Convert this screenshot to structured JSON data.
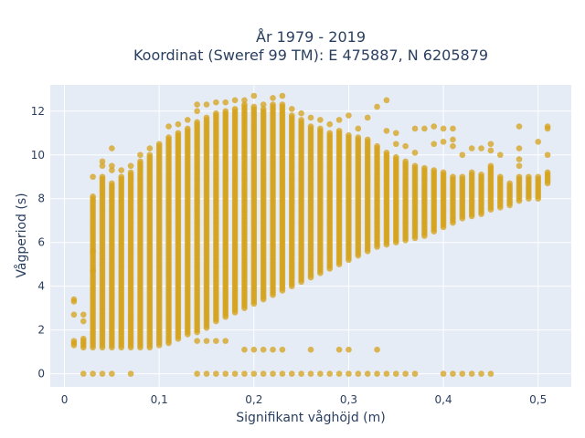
{
  "chart_data": {
    "type": "scatter",
    "title": [
      "År 1979 - 2019",
      "Koordinat (Sweref 99 TM): E 475887, N 6205879"
    ],
    "xlabel": "Signifikant våghöjd (m)",
    "ylabel": "Vågperiod (s)",
    "xlim": [
      -0.015,
      0.535
    ],
    "ylim": [
      -0.6,
      13.2
    ],
    "xticks": [
      0,
      0.1,
      0.2,
      0.3,
      0.4,
      0.5
    ],
    "xtick_labels": [
      "0",
      "0,1",
      "0,2",
      "0,3",
      "0,4",
      "0,5"
    ],
    "yticks": [
      0,
      2,
      4,
      6,
      8,
      10,
      12
    ],
    "ytick_labels": [
      "0",
      "2",
      "4",
      "6",
      "8",
      "10",
      "12"
    ],
    "grid": true,
    "colors": {
      "marker": "#d4a21a",
      "plot_bg": "#e5ecf6",
      "grid": "#ffffff",
      "text": "#2a3f5f"
    },
    "point_step_s": 0.1,
    "columns": [
      {
        "x": 0.01,
        "ymin": 1.3,
        "ymax": 1.5,
        "extra": [
          2.7,
          3.3,
          3.4
        ]
      },
      {
        "x": 0.02,
        "ymin": 1.2,
        "ymax": 1.6,
        "extra": [
          2.4,
          2.7,
          0
        ]
      },
      {
        "x": 0.03,
        "ymin": 1.2,
        "ymax": 8.1,
        "extra": [
          9.0,
          5.6,
          4.7,
          0
        ]
      },
      {
        "x": 0.04,
        "ymin": 1.2,
        "ymax": 9.0,
        "extra": [
          9.5,
          9.7,
          0
        ]
      },
      {
        "x": 0.05,
        "ymin": 1.2,
        "ymax": 8.7,
        "extra": [
          9.3,
          9.5,
          10.3,
          0
        ]
      },
      {
        "x": 0.06,
        "ymin": 1.2,
        "ymax": 9.0,
        "extra": [
          9.3
        ]
      },
      {
        "x": 0.07,
        "ymin": 1.2,
        "ymax": 9.2,
        "extra": [
          9.5,
          0
        ]
      },
      {
        "x": 0.08,
        "ymin": 1.2,
        "ymax": 9.7,
        "extra": [
          10.0
        ]
      },
      {
        "x": 0.09,
        "ymin": 1.2,
        "ymax": 10.0,
        "extra": [
          10.3
        ]
      },
      {
        "x": 0.1,
        "ymin": 1.3,
        "ymax": 10.5
      },
      {
        "x": 0.11,
        "ymin": 1.4,
        "ymax": 10.8,
        "extra": [
          11.3
        ]
      },
      {
        "x": 0.12,
        "ymin": 1.6,
        "ymax": 11.0,
        "extra": [
          11.4
        ]
      },
      {
        "x": 0.13,
        "ymin": 1.8,
        "ymax": 11.2,
        "extra": [
          11.6
        ]
      },
      {
        "x": 0.14,
        "ymin": 1.9,
        "ymax": 11.5,
        "extra": [
          12.0,
          12.3,
          1.5,
          0
        ]
      },
      {
        "x": 0.15,
        "ymin": 2.1,
        "ymax": 11.7,
        "extra": [
          12.3,
          1.5,
          0
        ]
      },
      {
        "x": 0.16,
        "ymin": 2.4,
        "ymax": 11.9,
        "extra": [
          12.4,
          1.5,
          0
        ]
      },
      {
        "x": 0.17,
        "ymin": 2.6,
        "ymax": 12.0,
        "extra": [
          12.4,
          1.5,
          0
        ]
      },
      {
        "x": 0.18,
        "ymin": 2.8,
        "ymax": 12.1,
        "extra": [
          12.5,
          0
        ]
      },
      {
        "x": 0.19,
        "ymin": 3.0,
        "ymax": 12.3,
        "extra": [
          12.5,
          1.1,
          0
        ]
      },
      {
        "x": 0.2,
        "ymin": 3.2,
        "ymax": 12.2,
        "extra": [
          12.7,
          1.1,
          0
        ]
      },
      {
        "x": 0.21,
        "ymin": 3.4,
        "ymax": 12.1,
        "extra": [
          12.3,
          1.1,
          0
        ]
      },
      {
        "x": 0.22,
        "ymin": 3.6,
        "ymax": 12.3,
        "extra": [
          12.6,
          1.1,
          0
        ]
      },
      {
        "x": 0.23,
        "ymin": 3.8,
        "ymax": 12.3,
        "extra": [
          12.7,
          1.1,
          0
        ]
      },
      {
        "x": 0.24,
        "ymin": 4.0,
        "ymax": 11.8,
        "extra": [
          12.1,
          0
        ]
      },
      {
        "x": 0.25,
        "ymin": 4.2,
        "ymax": 11.6,
        "extra": [
          11.9,
          0
        ]
      },
      {
        "x": 0.26,
        "ymin": 4.4,
        "ymax": 11.3,
        "extra": [
          11.7,
          1.1,
          0
        ]
      },
      {
        "x": 0.27,
        "ymin": 4.6,
        "ymax": 11.2,
        "extra": [
          11.6,
          0
        ]
      },
      {
        "x": 0.28,
        "ymin": 4.8,
        "ymax": 11.0,
        "extra": [
          11.4,
          0
        ]
      },
      {
        "x": 0.29,
        "ymin": 5.0,
        "ymax": 11.1,
        "extra": [
          11.6,
          1.1,
          0
        ]
      },
      {
        "x": 0.3,
        "ymin": 5.2,
        "ymax": 10.9,
        "extra": [
          11.8,
          1.1,
          0
        ]
      },
      {
        "x": 0.31,
        "ymin": 5.4,
        "ymax": 10.8,
        "extra": [
          11.2,
          0
        ]
      },
      {
        "x": 0.32,
        "ymin": 5.6,
        "ymax": 10.7,
        "extra": [
          11.7,
          0
        ]
      },
      {
        "x": 0.33,
        "ymin": 5.8,
        "ymax": 10.4,
        "extra": [
          12.2,
          1.1,
          0
        ]
      },
      {
        "x": 0.34,
        "ymin": 5.9,
        "ymax": 10.1,
        "extra": [
          12.5,
          11.1,
          0
        ]
      },
      {
        "x": 0.35,
        "ymin": 6.0,
        "ymax": 9.9,
        "extra": [
          10.5,
          11.0,
          0
        ]
      },
      {
        "x": 0.36,
        "ymin": 6.1,
        "ymax": 9.7,
        "extra": [
          10.4,
          0
        ]
      },
      {
        "x": 0.37,
        "ymin": 6.2,
        "ymax": 9.5,
        "extra": [
          10.1,
          11.2,
          0
        ]
      },
      {
        "x": 0.38,
        "ymin": 6.3,
        "ymax": 9.4,
        "extra": [
          11.2
        ]
      },
      {
        "x": 0.39,
        "ymin": 6.5,
        "ymax": 9.3,
        "extra": [
          10.5,
          11.3
        ]
      },
      {
        "x": 0.4,
        "ymin": 6.7,
        "ymax": 9.2,
        "extra": [
          10.6,
          11.2,
          0
        ]
      },
      {
        "x": 0.41,
        "ymin": 6.9,
        "ymax": 9.0,
        "extra": [
          10.4,
          10.7,
          11.2,
          0
        ]
      },
      {
        "x": 0.42,
        "ymin": 7.1,
        "ymax": 9.0,
        "extra": [
          10.0,
          0
        ]
      },
      {
        "x": 0.43,
        "ymin": 7.2,
        "ymax": 9.2,
        "extra": [
          10.3,
          0
        ]
      },
      {
        "x": 0.44,
        "ymin": 7.3,
        "ymax": 9.1,
        "extra": [
          10.3,
          0
        ]
      },
      {
        "x": 0.45,
        "ymin": 7.5,
        "ymax": 9.5,
        "extra": [
          10.5,
          10.2,
          0
        ]
      },
      {
        "x": 0.46,
        "ymin": 7.6,
        "ymax": 9.0,
        "extra": [
          10.0
        ]
      },
      {
        "x": 0.47,
        "ymin": 7.7,
        "ymax": 8.7
      },
      {
        "x": 0.48,
        "ymin": 7.9,
        "ymax": 9.0,
        "extra": [
          9.5,
          9.8,
          10.3,
          11.3
        ]
      },
      {
        "x": 0.49,
        "ymin": 8.0,
        "ymax": 9.0
      },
      {
        "x": 0.5,
        "ymin": 8.0,
        "ymax": 9.0,
        "extra": [
          10.6
        ]
      },
      {
        "x": 0.51,
        "ymin": 8.7,
        "ymax": 9.2,
        "extra": [
          11.2,
          11.3,
          10.0
        ]
      }
    ]
  }
}
